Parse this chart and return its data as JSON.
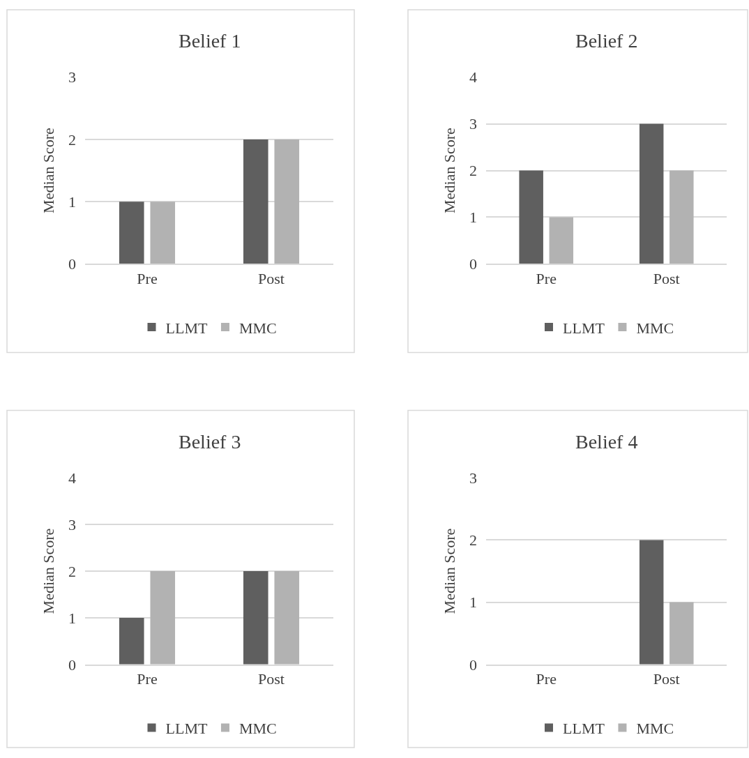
{
  "chart_data": [
    {
      "type": "bar",
      "title": "Belief 1",
      "ylabel": "Median Score",
      "categories": [
        "Pre",
        "Post"
      ],
      "series": [
        {
          "name": "LLMT",
          "color": "#5f5f5f",
          "values": [
            1,
            2
          ]
        },
        {
          "name": "MMC",
          "color": "#b2b2b2",
          "values": [
            1,
            2
          ]
        }
      ],
      "ylim": [
        0,
        3
      ],
      "yticks": [
        0,
        1,
        2,
        3
      ],
      "grid": "y",
      "legend": "bottom"
    },
    {
      "type": "bar",
      "title": "Belief 2",
      "ylabel": "Median Score",
      "categories": [
        "Pre",
        "Post"
      ],
      "series": [
        {
          "name": "LLMT",
          "color": "#5f5f5f",
          "values": [
            2,
            3
          ]
        },
        {
          "name": "MMC",
          "color": "#b2b2b2",
          "values": [
            1,
            2
          ]
        }
      ],
      "ylim": [
        0,
        4
      ],
      "yticks": [
        0,
        1,
        2,
        3,
        4
      ],
      "grid": "y",
      "legend": "bottom"
    },
    {
      "type": "bar",
      "title": "Belief 3",
      "ylabel": "Median Score",
      "categories": [
        "Pre",
        "Post"
      ],
      "series": [
        {
          "name": "LLMT",
          "color": "#5f5f5f",
          "values": [
            1,
            2
          ]
        },
        {
          "name": "MMC",
          "color": "#b2b2b2",
          "values": [
            2,
            2
          ]
        }
      ],
      "ylim": [
        0,
        4
      ],
      "yticks": [
        0,
        1,
        2,
        3,
        4
      ],
      "grid": "y",
      "legend": "bottom"
    },
    {
      "type": "bar",
      "title": "Belief 4",
      "ylabel": "Median Score",
      "categories": [
        "Pre",
        "Post"
      ],
      "series": [
        {
          "name": "LLMT",
          "color": "#5f5f5f",
          "values": [
            0,
            2
          ]
        },
        {
          "name": "MMC",
          "color": "#b2b2b2",
          "values": [
            0,
            1
          ]
        }
      ],
      "ylim": [
        0,
        3
      ],
      "yticks": [
        0,
        1,
        2,
        3
      ],
      "grid": "y",
      "legend": "bottom"
    }
  ]
}
